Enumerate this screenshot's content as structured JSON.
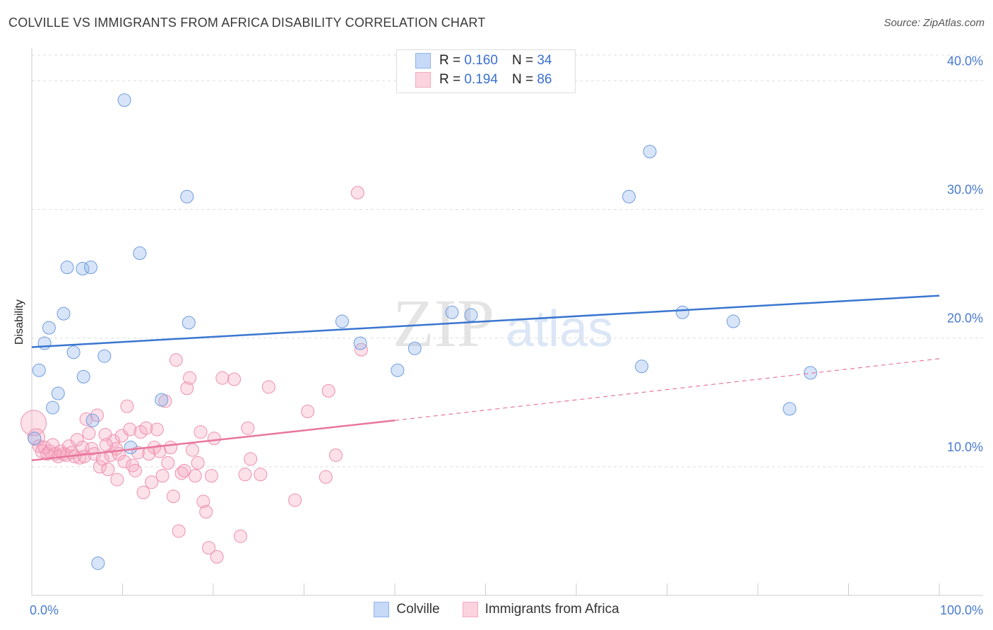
{
  "title": "COLVILLE VS IMMIGRANTS FROM AFRICA DISABILITY CORRELATION CHART",
  "source": "Source: ZipAtlas.com",
  "watermark": {
    "zip": "ZIP",
    "atlas": "atlas"
  },
  "legend": {
    "rows": [
      {
        "r_label": "R = ",
        "r_value": "0.160",
        "n_label": "N = ",
        "n_value": "34",
        "color": "#8fb4ec"
      },
      {
        "r_label": "R = ",
        "r_value": "0.194",
        "n_label": "N = ",
        "n_value": "86",
        "color": "#f5a9c0"
      }
    ]
  },
  "bottom_legend": [
    {
      "label": "Colville",
      "color": "#8fb4ec"
    },
    {
      "label": "Immigrants from Africa",
      "color": "#f5a9c0"
    }
  ],
  "colors": {
    "blue": "#3a76d0",
    "pink": "#e8769c",
    "tick": "#4a7bd0"
  },
  "chart_data": {
    "type": "scatter",
    "title": "COLVILLE VS IMMIGRANTS FROM AFRICA DISABILITY CORRELATION CHART",
    "xlabel": "",
    "ylabel": "Disability",
    "xlim": [
      0,
      100
    ],
    "ylim": [
      0,
      42
    ],
    "x_tick_labels": [
      {
        "value": 0,
        "label": "0.0%"
      },
      {
        "value": 100,
        "label": "100.0%"
      }
    ],
    "y_ticks": [
      {
        "value": 10,
        "label": "10.0%"
      },
      {
        "value": 20,
        "label": "20.0%"
      },
      {
        "value": 30,
        "label": "30.0%"
      },
      {
        "value": 40,
        "label": "40.0%"
      }
    ],
    "grid": true,
    "series": [
      {
        "name": "Colville",
        "color": "#8fb4ec",
        "trend": {
          "x": [
            0,
            100
          ],
          "y": [
            19.3,
            23.3
          ],
          "style": "solid"
        },
        "points": [
          [
            0.3,
            12.2
          ],
          [
            0.8,
            17.5
          ],
          [
            1.4,
            19.6
          ],
          [
            1.9,
            20.8
          ],
          [
            2.3,
            14.6
          ],
          [
            2.9,
            15.7
          ],
          [
            3.5,
            21.9
          ],
          [
            3.9,
            25.5
          ],
          [
            4.6,
            18.9
          ],
          [
            5.6,
            25.4
          ],
          [
            5.7,
            17.0
          ],
          [
            6.5,
            25.5
          ],
          [
            6.7,
            13.6
          ],
          [
            7.3,
            2.5
          ],
          [
            8.0,
            18.6
          ],
          [
            10.2,
            38.5
          ],
          [
            10.9,
            11.5
          ],
          [
            11.9,
            26.6
          ],
          [
            14.3,
            15.2
          ],
          [
            17.1,
            31.0
          ],
          [
            17.3,
            21.2
          ],
          [
            34.2,
            21.3
          ],
          [
            36.2,
            19.6
          ],
          [
            40.3,
            17.5
          ],
          [
            42.2,
            19.2
          ],
          [
            46.3,
            22.0
          ],
          [
            48.4,
            21.8
          ],
          [
            65.8,
            31.0
          ],
          [
            67.2,
            17.8
          ],
          [
            68.1,
            34.5
          ],
          [
            71.7,
            22.0
          ],
          [
            77.3,
            21.3
          ],
          [
            83.5,
            14.5
          ],
          [
            85.8,
            17.3
          ]
        ]
      },
      {
        "name": "Immigrants from Africa",
        "color": "#f5a9c0",
        "trend": {
          "x": [
            0,
            40
          ],
          "y": [
            10.5,
            13.6
          ],
          "style": "solid",
          "dash_extension": {
            "x": [
              40,
              100
            ],
            "y": [
              13.6,
              18.4
            ]
          }
        },
        "points": [
          [
            0.2,
            13.4
          ],
          [
            0.5,
            12.3
          ],
          [
            0.8,
            11.6
          ],
          [
            1.1,
            11.2
          ],
          [
            1.4,
            11.5
          ],
          [
            1.7,
            11.0
          ],
          [
            2.0,
            11.2
          ],
          [
            2.3,
            11.7
          ],
          [
            2.6,
            11.0
          ],
          [
            2.9,
            10.8
          ],
          [
            3.2,
            11.2
          ],
          [
            3.5,
            11.0
          ],
          [
            3.8,
            10.9
          ],
          [
            4.1,
            11.6
          ],
          [
            4.4,
            11.1
          ],
          [
            4.7,
            10.8
          ],
          [
            5.0,
            12.1
          ],
          [
            5.3,
            10.7
          ],
          [
            5.6,
            11.5
          ],
          [
            5.8,
            10.8
          ],
          [
            6.0,
            13.7
          ],
          [
            6.3,
            12.6
          ],
          [
            6.6,
            11.4
          ],
          [
            6.9,
            11.0
          ],
          [
            7.2,
            14.0
          ],
          [
            7.5,
            10.0
          ],
          [
            7.8,
            10.6
          ],
          [
            8.1,
            12.5
          ],
          [
            8.4,
            9.8
          ],
          [
            8.7,
            10.9
          ],
          [
            9.0,
            12.0
          ],
          [
            9.3,
            11.4
          ],
          [
            9.6,
            11.0
          ],
          [
            9.9,
            12.4
          ],
          [
            10.2,
            10.4
          ],
          [
            10.5,
            14.7
          ],
          [
            10.8,
            12.9
          ],
          [
            11.1,
            10.1
          ],
          [
            11.4,
            9.7
          ],
          [
            11.7,
            11.1
          ],
          [
            12.0,
            12.7
          ],
          [
            12.3,
            8.0
          ],
          [
            12.6,
            13.0
          ],
          [
            12.9,
            11.0
          ],
          [
            13.2,
            8.8
          ],
          [
            13.5,
            11.5
          ],
          [
            13.8,
            12.9
          ],
          [
            14.1,
            11.2
          ],
          [
            14.4,
            9.3
          ],
          [
            14.7,
            15.1
          ],
          [
            15.0,
            10.3
          ],
          [
            15.3,
            11.5
          ],
          [
            15.6,
            7.7
          ],
          [
            15.9,
            18.3
          ],
          [
            16.2,
            5.0
          ],
          [
            16.5,
            9.5
          ],
          [
            16.8,
            9.7
          ],
          [
            17.1,
            16.1
          ],
          [
            17.4,
            16.9
          ],
          [
            17.7,
            11.3
          ],
          [
            18.0,
            9.3
          ],
          [
            18.3,
            10.3
          ],
          [
            18.6,
            12.7
          ],
          [
            18.9,
            7.3
          ],
          [
            19.2,
            6.5
          ],
          [
            19.5,
            3.7
          ],
          [
            19.8,
            9.3
          ],
          [
            20.1,
            12.2
          ],
          [
            20.4,
            3.0
          ],
          [
            21.0,
            16.9
          ],
          [
            22.3,
            16.8
          ],
          [
            23.0,
            4.6
          ],
          [
            23.5,
            9.4
          ],
          [
            23.8,
            13.0
          ],
          [
            24.1,
            10.6
          ],
          [
            25.2,
            9.4
          ],
          [
            26.1,
            16.2
          ],
          [
            29.0,
            7.4
          ],
          [
            30.4,
            14.3
          ],
          [
            32.4,
            9.2
          ],
          [
            32.7,
            15.9
          ],
          [
            33.5,
            10.9
          ],
          [
            35.9,
            31.3
          ],
          [
            36.3,
            19.1
          ],
          [
            8.2,
            11.7
          ],
          [
            9.4,
            9.0
          ]
        ]
      }
    ]
  }
}
